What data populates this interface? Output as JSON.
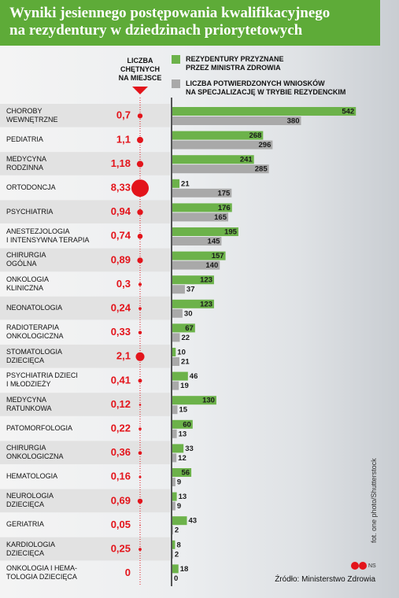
{
  "chart_data": {
    "type": "bar",
    "title": "Wyniki jesiennego postępowania kwalifikacyjnego\nna rezydentury w dziedzinach priorytetowych",
    "categories": [
      "CHOROBY\nWEWNĘTRZNE",
      "PEDIATRIA",
      "MEDYCYNA\nRODZINNA",
      "ORTODONCJA",
      "PSYCHIATRIA",
      "ANESTEZJOLOGIA\nI INTENSYWNA TERAPIA",
      "CHIRURGIA\nOGÓLNA",
      "ONKOLOGIA\nKLINICZNA",
      "NEONATOLOGIA",
      "RADIOTERAPIA\nONKOLOGICZNA",
      "STOMATOLOGIA\nDZIECIĘCA",
      "PSYCHIATRIA DZIECI\nI MŁODZIEŻY",
      "MEDYCYNA\nRATUNKOWA",
      "PATOMORFOLOGIA",
      "CHIRURGIA\nONKOLOGICZNA",
      "HEMATOLOGIA",
      "NEUROLOGIA\nDZIECIĘCA",
      "GERIATRIA",
      "KARDIOLOGIA\nDZIECIĘCA",
      "ONKOLOGIA I HEMA-\nTOLOGIA DZIECIĘCA"
    ],
    "series": [
      {
        "name": "REZYDENTURY PRZYZNANE\nPRZEZ MINISTRA ZDROWIA",
        "color": "#6cb24a",
        "values": [
          542,
          268,
          241,
          21,
          176,
          195,
          157,
          123,
          123,
          67,
          10,
          46,
          130,
          60,
          33,
          56,
          13,
          43,
          8,
          18
        ]
      },
      {
        "name": "LICZBA POTWIERDZONYCH WNIOSKÓW\nNA SPECJALIZACJĘ W TRYBIE REZYDENCKIM",
        "color": "#a9a9a9",
        "values": [
          380,
          296,
          285,
          175,
          165,
          145,
          140,
          37,
          30,
          22,
          21,
          19,
          15,
          13,
          12,
          9,
          9,
          2,
          2,
          0
        ]
      }
    ],
    "bubble_series": {
      "name": "LICZBA\nCHĘTNYCH\nNA MIEJSCE",
      "color": "#e3141b",
      "values": [
        0.7,
        1.1,
        1.18,
        8.33,
        0.94,
        0.74,
        0.89,
        0.3,
        0.24,
        0.33,
        2.1,
        0.41,
        0.12,
        0.22,
        0.36,
        0.16,
        0.69,
        0.05,
        0.25,
        0
      ],
      "value_labels": [
        "0,7",
        "1,1",
        "1,18",
        "8,33",
        "0,94",
        "0,74",
        "0,89",
        "0,3",
        "0,24",
        "0,33",
        "2,1",
        "0,41",
        "0,12",
        "0,22",
        "0,36",
        "0,16",
        "0,69",
        "0,05",
        "0,25",
        "0"
      ]
    },
    "xlim": [
      0,
      660
    ],
    "source": "Źródło: Ministerstwo Zdrowia",
    "credit": "fot. one photo/Shutterstock",
    "badge": "NS"
  }
}
